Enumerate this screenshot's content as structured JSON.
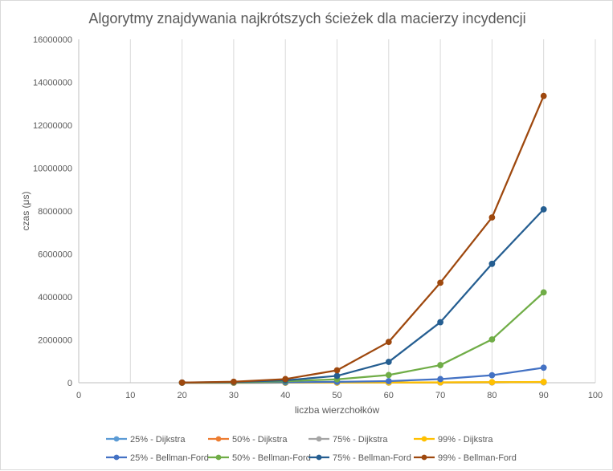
{
  "chart_data": {
    "type": "line",
    "title": "Algorytmy znajdywania najkrótszych ścieżek dla macierzy incydencji",
    "xlabel": "liczba wierzchołków",
    "ylabel": "czas (μs)",
    "xlim": [
      0,
      100
    ],
    "ylim": [
      0,
      16000000
    ],
    "x_ticks": [
      0,
      10,
      20,
      30,
      40,
      50,
      60,
      70,
      80,
      90,
      100
    ],
    "y_ticks": [
      0,
      2000000,
      4000000,
      6000000,
      8000000,
      10000000,
      12000000,
      14000000,
      16000000
    ],
    "x": [
      20,
      30,
      40,
      50,
      60,
      70,
      80,
      90
    ],
    "grid": "vertical",
    "legend_position": "bottom",
    "series": [
      {
        "name": "25% - Dijkstra",
        "color": "#5b9bd5",
        "values": [
          400,
          1200,
          2500,
          4500,
          7000,
          10500,
          15000,
          20000
        ]
      },
      {
        "name": "50% - Dijkstra",
        "color": "#ed7d31",
        "values": [
          450,
          1400,
          3000,
          5500,
          9000,
          13500,
          19000,
          26000
        ]
      },
      {
        "name": "75% - Dijkstra",
        "color": "#a5a5a5",
        "values": [
          500,
          1600,
          3500,
          6500,
          10500,
          16000,
          23000,
          31000
        ]
      },
      {
        "name": "99% - Dijkstra",
        "color": "#ffc000",
        "values": [
          550,
          1800,
          4000,
          7500,
          12000,
          18000,
          26000,
          36000
        ]
      },
      {
        "name": "25% - Bellman-Ford",
        "color": "#4472c4",
        "values": [
          2000,
          8000,
          20000,
          40000,
          75000,
          170000,
          350000,
          700000
        ]
      },
      {
        "name": "50% - Bellman-Ford",
        "color": "#70ad47",
        "values": [
          5000,
          20000,
          70000,
          160000,
          360000,
          820000,
          2020000,
          4210000
        ]
      },
      {
        "name": "75% - Bellman-Ford",
        "color": "#255e91",
        "values": [
          8000,
          35000,
          110000,
          320000,
          970000,
          2820000,
          5540000,
          8080000
        ]
      },
      {
        "name": "99% - Bellman-Ford",
        "color": "#9e480e",
        "values": [
          10000,
          45000,
          170000,
          580000,
          1900000,
          4660000,
          7700000,
          13360000
        ]
      }
    ]
  }
}
